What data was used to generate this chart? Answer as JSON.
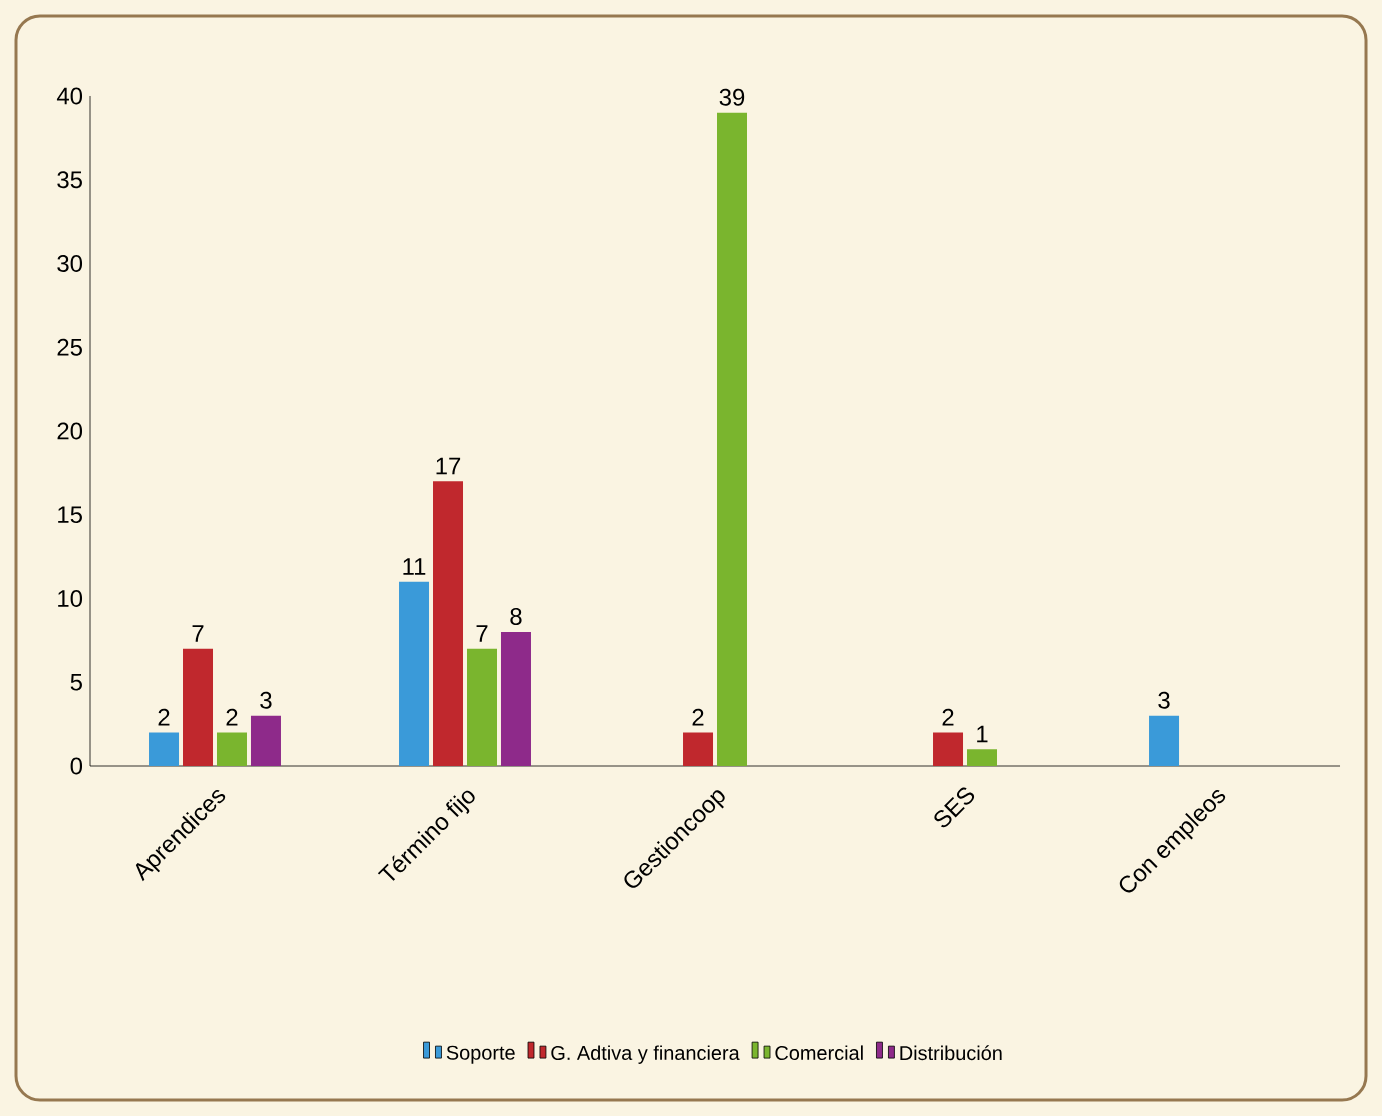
{
  "chart_data": {
    "type": "bar",
    "categories": [
      "Aprendices",
      "Término fijo",
      "Gestioncoop",
      "SES",
      "Con empleos"
    ],
    "series": [
      {
        "name": "Soporte",
        "color": "#3a9ad9",
        "values": [
          2,
          11,
          null,
          null,
          3
        ],
        "value_labels": [
          "2",
          "11",
          null,
          null,
          "3"
        ]
      },
      {
        "name": "G. Adtiva y financiera",
        "color": "#c0282d",
        "values": [
          7,
          17,
          2,
          2,
          null
        ],
        "value_labels": [
          "7",
          "17",
          "2",
          "2",
          null
        ]
      },
      {
        "name": "Comercial",
        "color": "#7ab52e",
        "values": [
          2,
          7,
          39,
          1,
          null
        ],
        "value_labels": [
          "2",
          "7",
          "39",
          "1",
          null
        ]
      },
      {
        "name": "Distribución",
        "color": "#8e2a8a",
        "values": [
          3,
          8,
          null,
          null,
          null
        ],
        "value_labels": [
          "3",
          "8",
          null,
          null,
          null
        ]
      }
    ],
    "ylim": [
      0,
      40
    ],
    "yticks": [
      0,
      5,
      10,
      15,
      20,
      25,
      30,
      35,
      40
    ],
    "grid": false,
    "legend": "bottom"
  }
}
